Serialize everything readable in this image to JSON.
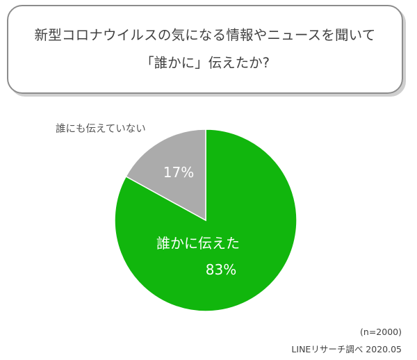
{
  "title_lines": [
    "新型コロナウイルスの気になる情報やニュースを聞いて",
    "「誰かに」伝えたか?"
  ],
  "chart_data": {
    "type": "pie",
    "title": "新型コロナウイルスの気になる情報やニュースを聞いて「誰かに」伝えたか?",
    "slices": [
      {
        "label": "誰かに伝えた",
        "value": 83,
        "value_label": "83%",
        "color": "#11b60d"
      },
      {
        "label": "誰にも伝えていない",
        "value": 17,
        "value_label": "17%",
        "color": "#ababab"
      }
    ],
    "start": "12 o'clock",
    "direction": "clockwise"
  },
  "footnote": {
    "sample": "(n=2000)",
    "source": "LINEリサーチ調べ 2020.05"
  }
}
